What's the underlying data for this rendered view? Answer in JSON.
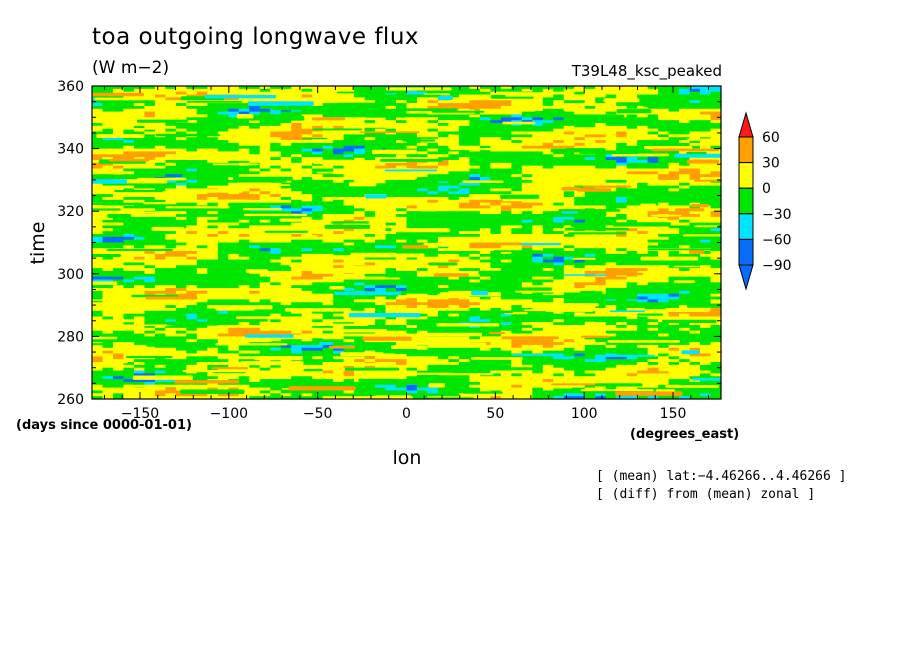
{
  "header": {
    "title": "toa outgoing longwave flux",
    "units": "(W m−2)",
    "run_label": "T39L48_ksc_peaked"
  },
  "notes": [
    "[ (mean) lat:−4.46266..4.46266 ]",
    "[ (diff) from (mean) zonal ]"
  ],
  "chart_data": {
    "type": "heatmap",
    "title": "toa outgoing longwave flux",
    "subtitle": "(W m−2)",
    "xlabel": "lon",
    "xunits": "(degrees_east)",
    "ylabel": "time",
    "yunits": "(days since 0000-01-01)",
    "xlim": [
      -177,
      177
    ],
    "ylim": [
      260,
      360
    ],
    "xticks": [
      -150,
      -100,
      -50,
      0,
      50,
      100,
      150
    ],
    "yticks": [
      260,
      280,
      300,
      320,
      340,
      360
    ],
    "xtick_labels": [
      "−150",
      "−100",
      "−50",
      "0",
      "50",
      "100",
      "150"
    ],
    "ytick_labels": [
      "260",
      "280",
      "300",
      "320",
      "340",
      "360"
    ],
    "colorbar": {
      "levels": [
        -90,
        -60,
        -30,
        0,
        30,
        60
      ],
      "labels": [
        "−90",
        "−60",
        "−30",
        "0",
        "30",
        "60"
      ],
      "colors": [
        "#0a6bff",
        "#00e5ff",
        "#00e600",
        "#ffff00",
        "#ffa000",
        "#ff1a1a"
      ],
      "extend": "both"
    },
    "description_values": {
      "dominant_bands": [
        "-30..0",
        "0..30"
      ],
      "occasional_bands": [
        "30..60",
        "-60..-30"
      ]
    }
  }
}
